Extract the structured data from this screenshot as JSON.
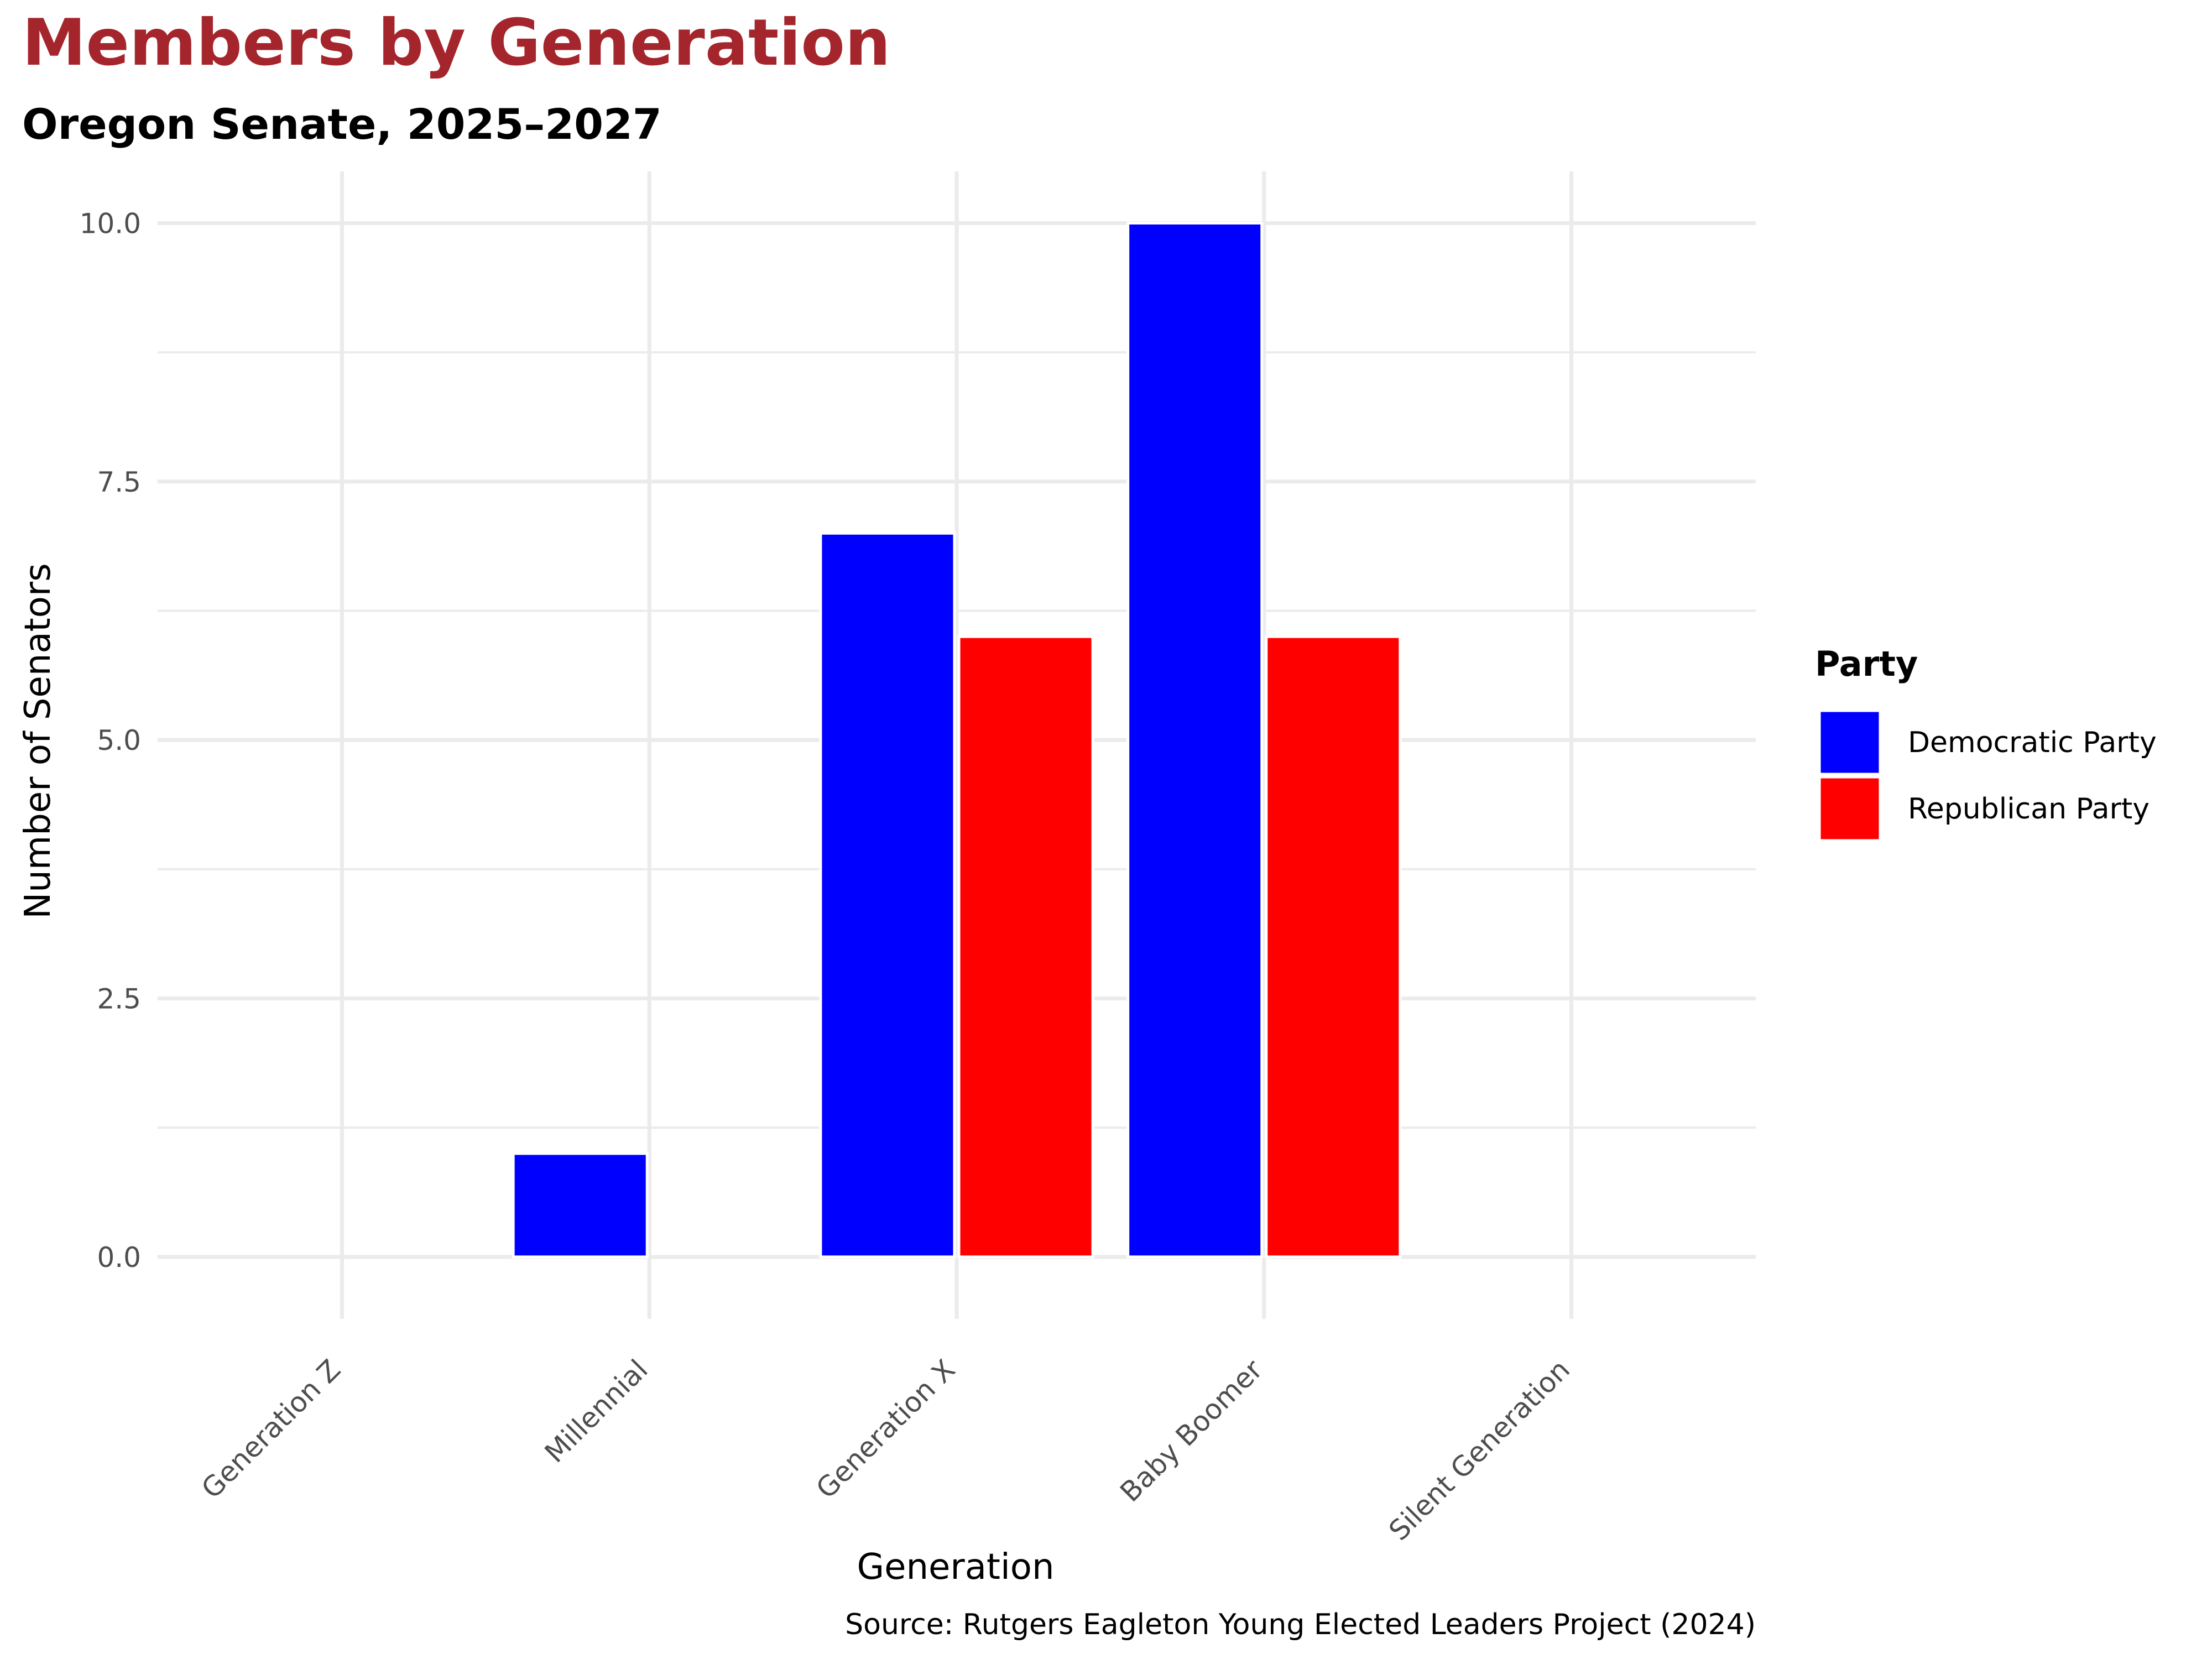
{
  "chart_data": {
    "type": "bar",
    "title": "Members by Generation",
    "subtitle": "Oregon Senate, 2025–2027",
    "xlabel": "Generation",
    "ylabel": "Number of Senators",
    "categories": [
      "Generation Z",
      "Millennial",
      "Generation X",
      "Baby Boomer",
      "Silent Generation"
    ],
    "series": [
      {
        "name": "Democratic Party",
        "color": "#0000FF",
        "values": [
          0,
          1,
          7,
          10,
          0
        ]
      },
      {
        "name": "Republican Party",
        "color": "#FF0000",
        "values": [
          0,
          0,
          6,
          6,
          0
        ]
      }
    ],
    "ylim": [
      -0.6,
      10.5
    ],
    "yticks": [
      0,
      2.5,
      5,
      7.5,
      10
    ],
    "ytick_labels": [
      "0.0",
      "2.5",
      "5.0",
      "7.5",
      "10.0"
    ],
    "grid": true,
    "legend_title": "Party",
    "legend_position": "right",
    "caption": "Source: Rutgers Eagleton Young Elected Leaders Project (2024)"
  }
}
